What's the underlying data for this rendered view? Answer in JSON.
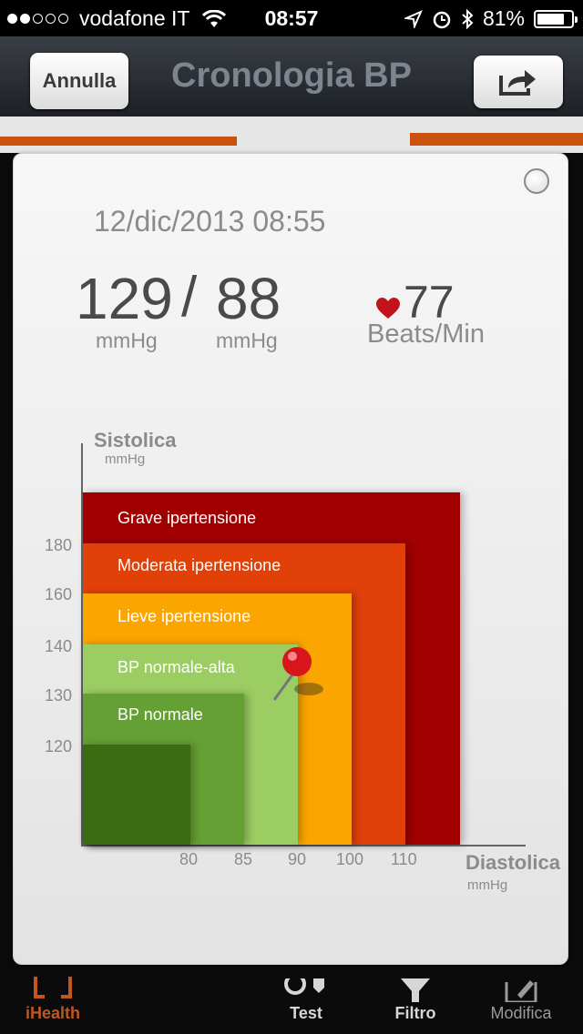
{
  "status": {
    "carrier": "vodafone IT",
    "time": "08:57",
    "battery": "81%",
    "battery_fraction": 0.81
  },
  "nav": {
    "cancel_label": "Annulla",
    "title": "Cronologia BP",
    "share_icon": "share-icon"
  },
  "reading": {
    "date": "12/dic/2013 08:55",
    "systolic": "129",
    "separator": "/",
    "diastolic": "88",
    "sys_unit": "mmHg",
    "dia_unit": "mmHg",
    "pulse": "77",
    "pulse_unit": "Beats/Min"
  },
  "chart": {
    "y_title": "Sistolica",
    "y_unit": "mmHg",
    "x_title": "Diastolica",
    "x_unit": "mmHg",
    "y_ticks": [
      "180",
      "160",
      "140",
      "130",
      "120"
    ],
    "x_ticks": [
      "80",
      "85",
      "90",
      "100",
      "110"
    ],
    "zones": [
      {
        "label": "Grave ipertensione",
        "color": "#a10000"
      },
      {
        "label": "Moderata ipertensione",
        "color": "#e24009"
      },
      {
        "label": "Lieve ipertensione",
        "color": "#fba500"
      },
      {
        "label": "BP normale-alta",
        "color": "#9ccd62"
      },
      {
        "label": "BP normale",
        "color": "#64a034"
      },
      {
        "label": "",
        "color": "#3a6a12"
      }
    ]
  },
  "tabs": [
    {
      "label": "iHealth",
      "color": "#c0571d"
    },
    {
      "label": "Test"
    },
    {
      "label": "Filtro"
    },
    {
      "label": "Modifica"
    }
  ]
}
